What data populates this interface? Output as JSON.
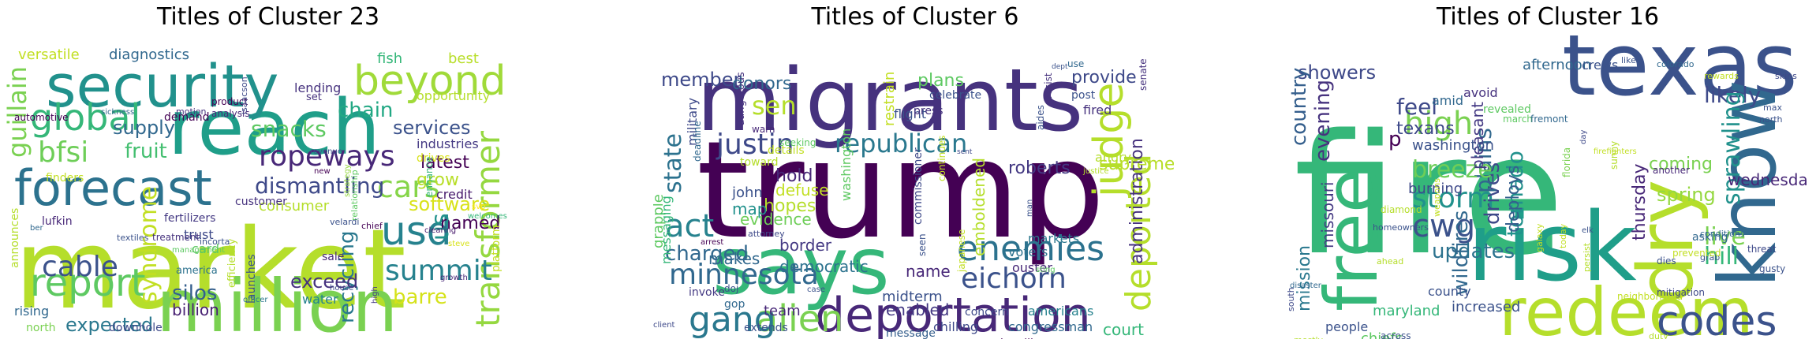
{
  "panels": [
    {
      "title": "Titles of Cluster 23",
      "words": [
        {
          "t": "market",
          "c": "#b5de2b"
        },
        {
          "t": "million",
          "c": "#7ad151"
        },
        {
          "t": "reach",
          "c": "#1f9e89"
        },
        {
          "t": "security",
          "c": "#21918c"
        },
        {
          "t": "forecast",
          "c": "#2c728e"
        },
        {
          "t": "report",
          "c": "#5ec962"
        },
        {
          "t": "beyond",
          "c": "#a0da39"
        },
        {
          "t": "global",
          "c": "#35b779"
        },
        {
          "t": "usd",
          "c": "#26828e"
        },
        {
          "t": "transformer",
          "c": "#95d840"
        },
        {
          "t": "cable",
          "c": "#3b528b"
        },
        {
          "t": "summit",
          "c": "#26828e"
        },
        {
          "t": "ropeways",
          "c": "#482878"
        },
        {
          "t": "cars",
          "c": "#86d549"
        },
        {
          "t": "bfsi",
          "c": "#6ece58"
        },
        {
          "t": "syndrome",
          "c": "#c2df23"
        },
        {
          "t": "recycling",
          "c": "#2a788e"
        },
        {
          "t": "dismantling",
          "c": "#3e4989"
        },
        {
          "t": "fruit",
          "c": "#44bf70"
        },
        {
          "t": "supply",
          "c": "#31688e"
        },
        {
          "t": "snacks",
          "c": "#5ec962"
        },
        {
          "t": "chain",
          "c": "#22a884"
        },
        {
          "t": "services",
          "c": "#3b528b"
        },
        {
          "t": "latest",
          "c": "#440154"
        },
        {
          "t": "grow",
          "c": "#b8de29"
        },
        {
          "t": "software",
          "c": "#d8e219"
        },
        {
          "t": "expected",
          "c": "#2a788e"
        },
        {
          "t": "silos",
          "c": "#355f8d"
        },
        {
          "t": "billion",
          "c": "#482173"
        },
        {
          "t": "exceed",
          "c": "#46327e"
        },
        {
          "t": "barre",
          "c": "#d5e21a"
        },
        {
          "t": "named",
          "c": "#440154"
        },
        {
          "t": "us",
          "c": "#21918c"
        },
        {
          "t": "guillain",
          "c": "#7ad151"
        },
        {
          "t": "diagnostics",
          "c": "#31688e"
        },
        {
          "t": "versatile",
          "c": "#c2df23"
        },
        {
          "t": "fish",
          "c": "#35b779"
        },
        {
          "t": "best",
          "c": "#b8de29"
        },
        {
          "t": "lending",
          "c": "#46327e"
        },
        {
          "t": "opportunity",
          "c": "#b5de2b"
        },
        {
          "t": "industries",
          "c": "#443983"
        },
        {
          "t": "credit",
          "c": "#481b6d"
        },
        {
          "t": "trust",
          "c": "#3e4989"
        },
        {
          "t": "card",
          "c": "#5ec962"
        },
        {
          "t": "consumer",
          "c": "#b5de2b"
        },
        {
          "t": "customer",
          "c": "#46327e"
        },
        {
          "t": "fertilizers",
          "c": "#443983"
        },
        {
          "t": "finders",
          "c": "#c2df23"
        },
        {
          "t": "water",
          "c": "#26828e"
        },
        {
          "t": "sale",
          "c": "#482878"
        },
        {
          "t": "rising",
          "c": "#31688e"
        },
        {
          "t": "launches",
          "c": "#3b528b"
        },
        {
          "t": "america",
          "c": "#2c728e"
        },
        {
          "t": "platform",
          "c": "#c2df23"
        },
        {
          "t": "efficiency",
          "c": "#b5de2b"
        },
        {
          "t": "north",
          "c": "#7ad151"
        },
        {
          "t": "downhole",
          "c": "#3e4989"
        },
        {
          "t": "announces",
          "c": "#b5de2b"
        },
        {
          "t": "lufkin",
          "c": "#482878"
        },
        {
          "t": "demand",
          "c": "#440154"
        },
        {
          "t": "product",
          "c": "#440154"
        },
        {
          "t": "analysis",
          "c": "#482878"
        },
        {
          "t": "automotive",
          "c": "#440154"
        },
        {
          "t": "sickness",
          "c": "#31688e"
        },
        {
          "t": "motion",
          "c": "#46327e"
        },
        {
          "t": "textiles",
          "c": "#3b528b"
        },
        {
          "t": "treatment",
          "c": "#46327e"
        },
        {
          "t": "incorta",
          "c": "#3b528b"
        },
        {
          "t": "management",
          "c": "#5ec962"
        },
        {
          "t": "revenue",
          "c": "#3b528b"
        },
        {
          "t": "isaacson",
          "c": "#3e4989"
        },
        {
          "t": "set",
          "c": "#46327e"
        },
        {
          "t": "new",
          "c": "#440154"
        },
        {
          "t": "drives",
          "c": "#d8e219"
        },
        {
          "t": "enhance",
          "c": "#35b779"
        },
        {
          "t": "strategy",
          "c": "#95d840"
        },
        {
          "t": "relationship",
          "c": "#5ec962"
        },
        {
          "t": "velardi",
          "c": "#3b528b"
        },
        {
          "t": "chief",
          "c": "#440154"
        },
        {
          "t": "high",
          "c": "#443983"
        },
        {
          "t": "house",
          "c": "#3e4989"
        },
        {
          "t": "officer",
          "c": "#2a788e"
        },
        {
          "t": "growth",
          "c": "#482878"
        },
        {
          "t": "clearing",
          "c": "#481b6d"
        },
        {
          "t": "steve",
          "c": "#d8e219"
        },
        {
          "t": "svp",
          "c": "#fde725"
        },
        {
          "t": "welcomes",
          "c": "#35b779"
        },
        {
          "t": "ber",
          "c": "#31688e"
        }
      ]
    },
    {
      "title": "Titles of Cluster 6",
      "words": [
        {
          "t": "trump",
          "c": "#440154"
        },
        {
          "t": "migrants",
          "c": "#46327e"
        },
        {
          "t": "says",
          "c": "#35b779"
        },
        {
          "t": "deportation",
          "c": "#482878"
        },
        {
          "t": "alien",
          "c": "#7ad151"
        },
        {
          "t": "gang",
          "c": "#2a788e"
        },
        {
          "t": "judge",
          "c": "#b5de2b"
        },
        {
          "t": "deported",
          "c": "#b5de2b"
        },
        {
          "t": "enemies",
          "c": "#2c728e"
        },
        {
          "t": "republican",
          "c": "#2a788e"
        },
        {
          "t": "justin",
          "c": "#3e4989"
        },
        {
          "t": "act",
          "c": "#26828e"
        },
        {
          "t": "minnesota",
          "c": "#31688e"
        },
        {
          "t": "eichorn",
          "c": "#3b528b"
        },
        {
          "t": "state",
          "c": "#2c728e"
        },
        {
          "t": "sen",
          "c": "#b5de2b"
        },
        {
          "t": "charged",
          "c": "#31688e"
        },
        {
          "t": "member",
          "c": "#3e4989"
        },
        {
          "t": "donors",
          "c": "#31688e"
        },
        {
          "t": "plans",
          "c": "#5ec962"
        },
        {
          "t": "provide",
          "c": "#3e4989"
        },
        {
          "t": "supreme",
          "c": "#b8de29"
        },
        {
          "t": "administration",
          "c": "#46327e"
        },
        {
          "t": "court",
          "c": "#35b779"
        },
        {
          "t": "roberts",
          "c": "#443983"
        },
        {
          "t": "emboldened",
          "c": "#b5de2b"
        },
        {
          "t": "name",
          "c": "#482878"
        },
        {
          "t": "democratic",
          "c": "#2c728e"
        },
        {
          "t": "border",
          "c": "#443983"
        },
        {
          "t": "evidence",
          "c": "#6ece58"
        },
        {
          "t": "makes",
          "c": "#31688e"
        },
        {
          "t": "hopes",
          "c": "#b5de2b"
        },
        {
          "t": "defuse",
          "c": "#c2df23"
        },
        {
          "t": "hold",
          "c": "#482878"
        },
        {
          "t": "john",
          "c": "#3b528b"
        },
        {
          "t": "map",
          "c": "#21918c"
        },
        {
          "t": "grapple",
          "c": "#5ec962"
        },
        {
          "t": "messaging",
          "c": "#35b779"
        },
        {
          "t": "military",
          "c": "#3e4989"
        },
        {
          "t": "team",
          "c": "#482878"
        },
        {
          "t": "enabled",
          "c": "#443983"
        },
        {
          "t": "midterm",
          "c": "#3b528b"
        },
        {
          "t": "restrain",
          "c": "#c2df23"
        },
        {
          "t": "flight",
          "c": "#3b528b"
        },
        {
          "t": "fired",
          "c": "#46327e"
        },
        {
          "t": "angry",
          "c": "#b5de2b"
        },
        {
          "t": "commissioner",
          "c": "#3e4989"
        },
        {
          "t": "washington",
          "c": "#5ec962"
        },
        {
          "t": "dangerous",
          "c": "#46327e"
        },
        {
          "t": "deadline",
          "c": "#31688e"
        },
        {
          "t": "celebrate",
          "c": "#3b528b"
        },
        {
          "t": "press",
          "c": "#46327e"
        },
        {
          "t": "post",
          "c": "#3b528b"
        },
        {
          "t": "aides",
          "c": "#3b528b"
        },
        {
          "t": "resist",
          "c": "#46327e"
        },
        {
          "t": "use",
          "c": "#31688e"
        },
        {
          "t": "markets",
          "c": "#2a788e"
        },
        {
          "t": "voters",
          "c": "#2c728e"
        },
        {
          "t": "ouster",
          "c": "#482878"
        },
        {
          "t": "americans",
          "c": "#26828e"
        },
        {
          "t": "congressman",
          "c": "#31688e"
        },
        {
          "t": "chilling",
          "c": "#3e4989"
        },
        {
          "t": "message",
          "c": "#355f8d"
        },
        {
          "t": "hostility",
          "c": "#440154"
        },
        {
          "t": "concern",
          "c": "#3e4989"
        },
        {
          "t": "extends",
          "c": "#3b528b"
        },
        {
          "t": "gop",
          "c": "#31688e"
        },
        {
          "t": "ftc",
          "c": "#3b528b"
        },
        {
          "t": "invoke",
          "c": "#443983"
        },
        {
          "t": "doj",
          "c": "#3b528b"
        },
        {
          "t": "toward",
          "c": "#b5de2b"
        },
        {
          "t": "details",
          "c": "#c2df23"
        },
        {
          "t": "continues",
          "c": "#c2df23"
        },
        {
          "t": "japanese",
          "c": "#c2df23"
        },
        {
          "t": "seen",
          "c": "#3b528b"
        },
        {
          "t": "warn",
          "c": "#482878"
        },
        {
          "t": "seeking",
          "c": "#5ec962"
        },
        {
          "t": "attorney",
          "c": "#3e4989"
        },
        {
          "t": "arrest",
          "c": "#440154"
        },
        {
          "t": "case",
          "c": "#3b528b"
        },
        {
          "t": "move",
          "c": "#31688e"
        },
        {
          "t": "sting",
          "c": "#5ec962"
        },
        {
          "t": "man",
          "c": "#3b528b"
        },
        {
          "t": "justice",
          "c": "#b5de2b"
        },
        {
          "t": "sent",
          "c": "#3e4989"
        },
        {
          "t": "senate",
          "c": "#46327e"
        },
        {
          "t": "dept",
          "c": "#3b528b"
        },
        {
          "t": "client",
          "c": "#3e4989"
        },
        {
          "t": "prostitution",
          "c": "#b5de2b"
        },
        {
          "t": "privilege",
          "c": "#b5de2b"
        }
      ]
    },
    {
      "title": "Titles of Cluster 16",
      "words": [
        {
          "t": "fire",
          "c": "#35b779"
        },
        {
          "t": "texas",
          "c": "#3b528b"
        },
        {
          "t": "risk",
          "c": "#1f9e89"
        },
        {
          "t": "know",
          "c": "#31688e"
        },
        {
          "t": "dry",
          "c": "#b5de2b"
        },
        {
          "t": "free",
          "c": "#35b779"
        },
        {
          "t": "redeem",
          "c": "#b5de2b"
        },
        {
          "t": "codes",
          "c": "#3b528b"
        },
        {
          "t": "cwg",
          "c": "#3b528b"
        },
        {
          "t": "high",
          "c": "#7ad151"
        },
        {
          "t": "storm",
          "c": "#21918c"
        },
        {
          "t": "tornado",
          "c": "#21918c"
        },
        {
          "t": "likely",
          "c": "#3e4989"
        },
        {
          "t": "showers",
          "c": "#3e4989"
        },
        {
          "t": "feel",
          "c": "#3e4989"
        },
        {
          "t": "country",
          "c": "#355f8d"
        },
        {
          "t": "evening",
          "c": "#46327e"
        },
        {
          "t": "drives",
          "c": "#3e4989"
        },
        {
          "t": "plains",
          "c": "#31688e"
        },
        {
          "t": "sprawling",
          "c": "#21918c"
        },
        {
          "t": "live",
          "c": "#7ad151"
        },
        {
          "t": "hill",
          "c": "#35b779"
        },
        {
          "t": "breeze",
          "c": "#6ece58"
        },
        {
          "t": "updates",
          "c": "#2c728e"
        },
        {
          "t": "wildfires",
          "c": "#31688e"
        },
        {
          "t": "deploys",
          "c": "#355f8d"
        },
        {
          "t": "missouri",
          "c": "#443983"
        },
        {
          "t": "mission",
          "c": "#2a788e"
        },
        {
          "t": "texans",
          "c": "#3e4989"
        },
        {
          "t": "p",
          "c": "#440154"
        },
        {
          "t": "thursday",
          "c": "#482878"
        },
        {
          "t": "spring",
          "c": "#95d840"
        },
        {
          "t": "coming",
          "c": "#7ad151"
        },
        {
          "t": "wednesday",
          "c": "#482878"
        },
        {
          "t": "pleasant",
          "c": "#443983"
        },
        {
          "t": "washington",
          "c": "#3b528b"
        },
        {
          "t": "burning",
          "c": "#3e4989"
        },
        {
          "t": "people",
          "c": "#3b528b"
        },
        {
          "t": "maryland",
          "c": "#35b779"
        },
        {
          "t": "chiefs",
          "c": "#5ec962"
        },
        {
          "t": "increased",
          "c": "#3b528b"
        },
        {
          "t": "afternoon",
          "c": "#31688e"
        },
        {
          "t": "crews",
          "c": "#3b528b"
        },
        {
          "t": "asking",
          "c": "#31688e"
        },
        {
          "t": "avoid",
          "c": "#46327e"
        },
        {
          "t": "amid",
          "c": "#31688e"
        },
        {
          "t": "revealed",
          "c": "#5ec962"
        },
        {
          "t": "march",
          "c": "#5ec962"
        },
        {
          "t": "fremont",
          "c": "#31688e"
        },
        {
          "t": "county",
          "c": "#3b528b"
        },
        {
          "t": "diamond",
          "c": "#b5de2b"
        },
        {
          "t": "homeowners",
          "c": "#3b528b"
        },
        {
          "t": "weapons",
          "c": "#c2df23"
        },
        {
          "t": "florida",
          "c": "#7ad151"
        },
        {
          "t": "sunny",
          "c": "#b5de2b"
        },
        {
          "t": "another",
          "c": "#482878"
        },
        {
          "t": "threat",
          "c": "#3e4989"
        },
        {
          "t": "gusty",
          "c": "#3b528b"
        },
        {
          "t": "grab",
          "c": "#3b528b"
        },
        {
          "t": "prevented",
          "c": "#c2df23"
        },
        {
          "t": "conditions",
          "c": "#31688e"
        },
        {
          "t": "dies",
          "c": "#3b528b"
        },
        {
          "t": "neighborhood",
          "c": "#c2df23"
        },
        {
          "t": "mitigation",
          "c": "#3e4989"
        },
        {
          "t": "duty",
          "c": "#b5de2b"
        },
        {
          "t": "across",
          "c": "#3b528b"
        },
        {
          "t": "ahead",
          "c": "#b5de2b"
        },
        {
          "t": "mostly",
          "c": "#b5de2b"
        },
        {
          "t": "south",
          "c": "#3e4989"
        },
        {
          "t": "disaster",
          "c": "#31688e"
        },
        {
          "t": "elk",
          "c": "#3b528b"
        },
        {
          "t": "today",
          "c": "#c2df23"
        },
        {
          "t": "persist",
          "c": "#b5de2b"
        },
        {
          "t": "like",
          "c": "#3b528b"
        },
        {
          "t": "colorado",
          "c": "#31688e"
        },
        {
          "t": "skins",
          "c": "#3e4989"
        },
        {
          "t": "rewards",
          "c": "#c2df23"
        },
        {
          "t": "max",
          "c": "#3b528b"
        },
        {
          "t": "north",
          "c": "#3b528b"
        },
        {
          "t": "day",
          "c": "#3e4989"
        },
        {
          "t": "firefighters",
          "c": "#c2df23"
        },
        {
          "t": "galaxy",
          "c": "#c2df23"
        }
      ]
    }
  ]
}
